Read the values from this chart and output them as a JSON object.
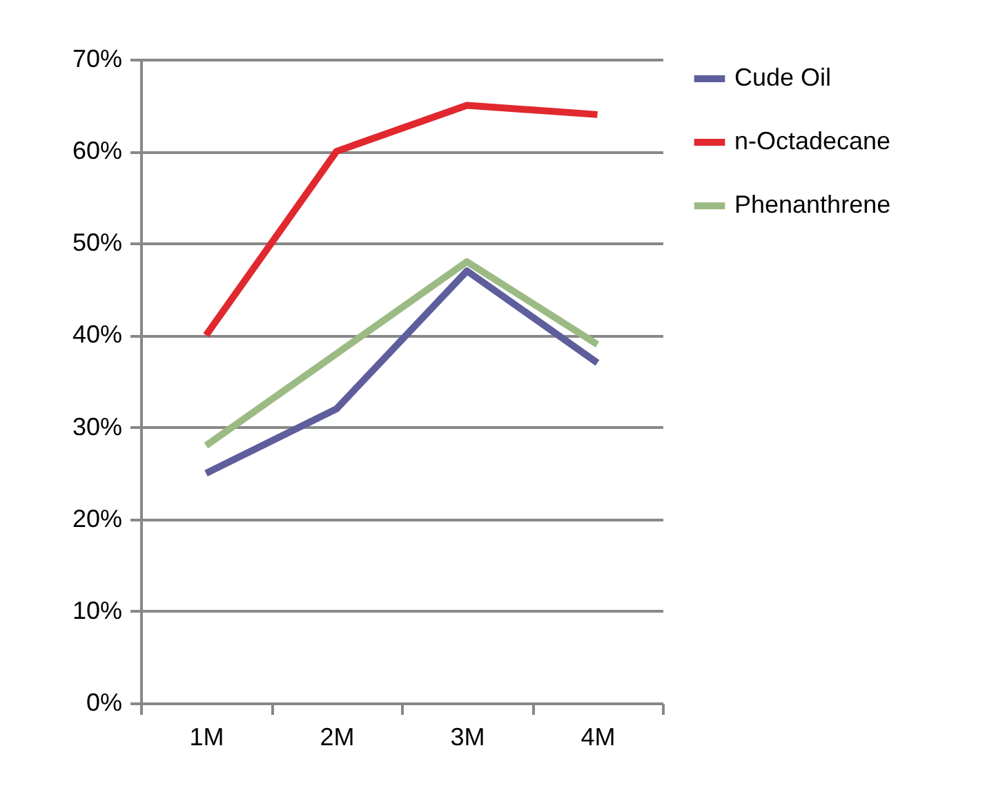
{
  "chart_data": {
    "type": "line",
    "categories": [
      "1M",
      "2M",
      "3M",
      "4M"
    ],
    "series": [
      {
        "name": "Cude Oil",
        "color": "#5e5e9c",
        "values": [
          25,
          32,
          47,
          37
        ]
      },
      {
        "name": "n-Octadecane",
        "color": "#e0282e",
        "values": [
          40,
          60,
          65,
          64
        ]
      },
      {
        "name": "Phenanthrene",
        "color": "#9cbb84",
        "values": [
          28,
          38,
          48,
          39
        ]
      }
    ],
    "ylim": [
      0,
      70
    ],
    "yticks": [
      {
        "value": 0,
        "label": "0%"
      },
      {
        "value": 10,
        "label": "10%"
      },
      {
        "value": 20,
        "label": "20%"
      },
      {
        "value": 30,
        "label": "30%"
      },
      {
        "value": 40,
        "label": "40%"
      },
      {
        "value": 50,
        "label": "50%"
      },
      {
        "value": 60,
        "label": "60%"
      },
      {
        "value": 70,
        "label": "70%"
      }
    ],
    "grid": "y",
    "legend": "right",
    "marker": "none",
    "line_style": "solid"
  }
}
